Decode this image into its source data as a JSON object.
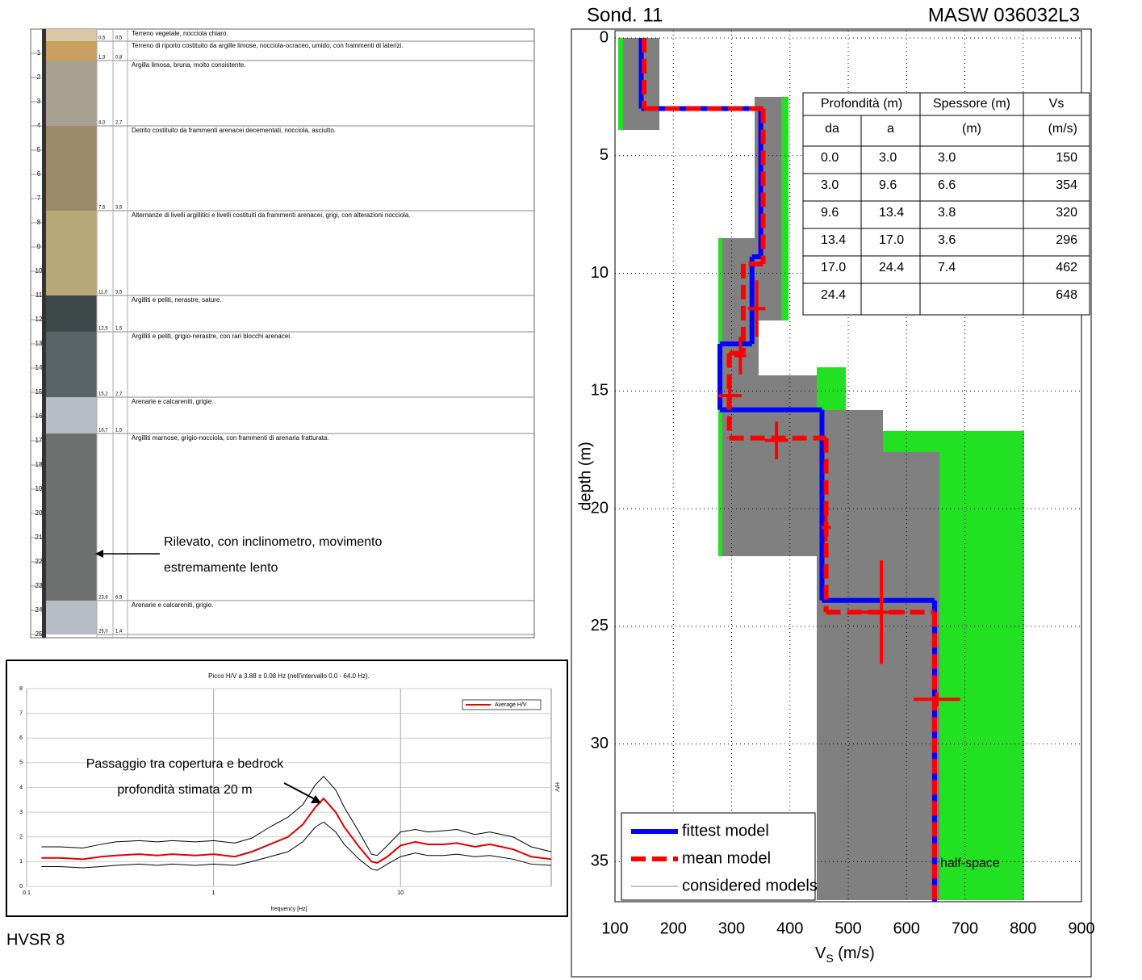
{
  "log": {
    "depth_ticks": [
      1,
      2,
      3,
      4,
      5,
      6,
      7,
      8,
      9,
      10,
      11,
      12,
      13,
      14,
      15,
      16,
      17,
      18,
      19,
      20,
      21,
      22,
      23,
      24,
      25
    ],
    "layers": [
      {
        "depth": {
          "value": 0.5,
          "label": "0,5"
        },
        "thickness": "0,5",
        "color": "#d9c7a6",
        "description": "Terreno vegetale, nocciola chiaro."
      },
      {
        "depth": {
          "value": 1.3,
          "label": "1,3"
        },
        "thickness": "0,8",
        "color": "#c9a060",
        "description": "Terreno di riporto costituito da argille limose, nocciola-ocraceo, umido, con frammenti di laterizi."
      },
      {
        "depth": {
          "value": 4.0,
          "label": "4,0"
        },
        "thickness": "2,7",
        "color": "#a8a090",
        "description": "Argilla limosa, bruna, molto consistente."
      },
      {
        "depth": {
          "value": 7.5,
          "label": "7,5"
        },
        "thickness": "3,5",
        "color": "#9c8a6a",
        "description": "Detrito costituito da frammenti arenacei decementati, nocciola, asciutto."
      },
      {
        "depth": {
          "value": 11.0,
          "label": "11,0"
        },
        "thickness": "3,5",
        "color": "#b8a878",
        "description": "Alternanze di livelli argillitici e livelli costituiti da frammenti arenacei, grigi, con alterazioni nocciola."
      },
      {
        "depth": {
          "value": 12.5,
          "label": "12,5"
        },
        "thickness": "1,5",
        "color": "#3e4848",
        "description": "Argilliti e peliti, nerastre, sature."
      },
      {
        "depth": {
          "value": 15.2,
          "label": "15,2"
        },
        "thickness": "2,7",
        "color": "#5a6466",
        "description": "Argilliti e peliti, grigio-nerastre, con rari blocchi arenacei."
      },
      {
        "depth": {
          "value": 16.7,
          "label": "16,7"
        },
        "thickness": "1,5",
        "color": "#b8bcc4",
        "description": "Arenarie e calcareniti, grigie."
      },
      {
        "depth": {
          "value": 23.6,
          "label": "23,6"
        },
        "thickness": "6,9",
        "color": "#6e7070",
        "description": "Argilliti marnose, grigio-nocciola, con frammenti di arenaria fratturata."
      },
      {
        "depth": {
          "value": 25.0,
          "label": "25,0"
        },
        "thickness": "1,4",
        "color": "#b8bcc4",
        "description": "Arenarie e calcareniti, grigie."
      }
    ],
    "annotation": [
      "Rilevato, con inclinometro, movimento",
      "estremamente lento"
    ]
  },
  "chart_data": [
    {
      "type": "line",
      "title": "Picco H/V a 3.88 ± 0.08 Hz (nell'intervallo 0.0 - 64.0 Hz).",
      "xlabel": "frequency [Hz]",
      "ylabel": "H/V",
      "caption": "HVSR 8",
      "annotation": [
        "Passaggio tra copertura e bedrock",
        "profondità stimata 20 m"
      ],
      "xscale": "log",
      "xlim": [
        0.1,
        64
      ],
      "xticks": [
        0.1,
        1,
        10
      ],
      "ylim": [
        0,
        8
      ],
      "yticks": [
        0,
        1,
        2,
        3,
        4,
        5,
        6,
        7,
        8
      ],
      "grid": true,
      "legend": "upper right",
      "x": [
        0.12,
        0.15,
        0.2,
        0.25,
        0.3,
        0.4,
        0.5,
        0.6,
        0.8,
        1,
        1.3,
        1.6,
        2,
        2.5,
        3,
        3.5,
        3.88,
        4.5,
        5,
        6,
        7,
        7.5,
        8.5,
        10,
        12,
        14,
        17,
        20,
        25,
        30,
        40,
        50,
        64
      ],
      "series": [
        {
          "color": "#000000",
          "values": [
            1.6,
            1.6,
            1.55,
            1.7,
            1.8,
            1.85,
            1.8,
            1.85,
            1.8,
            1.85,
            1.75,
            1.95,
            2.4,
            2.8,
            3.3,
            4.1,
            4.45,
            3.9,
            3.2,
            2.2,
            1.3,
            1.25,
            1.65,
            2.2,
            2.3,
            2.2,
            2.25,
            2.3,
            2.1,
            2.2,
            2.0,
            1.6,
            1.4
          ]
        },
        {
          "color": "#000000",
          "values": [
            0.8,
            0.8,
            0.75,
            0.8,
            0.85,
            0.9,
            0.85,
            0.9,
            0.85,
            0.9,
            0.85,
            1.0,
            1.2,
            1.4,
            1.8,
            2.4,
            2.6,
            2.2,
            1.7,
            1.1,
            0.7,
            0.65,
            0.9,
            1.2,
            1.35,
            1.25,
            1.25,
            1.3,
            1.2,
            1.25,
            1.1,
            0.9,
            0.85
          ]
        },
        {
          "name": "Average H/V",
          "color": "#e00000",
          "values": [
            1.15,
            1.15,
            1.1,
            1.2,
            1.25,
            1.3,
            1.25,
            1.3,
            1.25,
            1.3,
            1.2,
            1.4,
            1.7,
            2.0,
            2.5,
            3.2,
            3.55,
            3.0,
            2.4,
            1.6,
            1.0,
            0.95,
            1.2,
            1.65,
            1.8,
            1.7,
            1.7,
            1.75,
            1.6,
            1.7,
            1.5,
            1.2,
            1.1
          ]
        }
      ]
    },
    {
      "type": "step",
      "title": "Sond. 11",
      "subtitle": "MASW 036032L3",
      "xlabel": {
        "main": "V",
        "sub": "S",
        "unit": "(m/s)"
      },
      "ylabel": "depth (m)",
      "xlim": [
        100,
        900
      ],
      "xticks": [
        100,
        200,
        300,
        400,
        500,
        600,
        700,
        800,
        900
      ],
      "ylim": [
        0,
        36.7
      ],
      "yticks": [
        0,
        5,
        10,
        15,
        20,
        25,
        30,
        35
      ],
      "y_inverted": true,
      "grid": true,
      "legend": "lower left",
      "series": [
        {
          "name": "fittest model",
          "color": "#0000ff",
          "style": "solid",
          "top": [
            0,
            3,
            9.3,
            13,
            15.8,
            23.9
          ],
          "vs": [
            145,
            350,
            335,
            280,
            455,
            648
          ]
        },
        {
          "name": "mean model",
          "color": "#ff0000",
          "style": "dashed",
          "top": [
            0,
            3,
            9.6,
            13.4,
            17,
            24.4
          ],
          "vs": [
            150,
            354,
            320,
            296,
            462,
            648
          ]
        },
        {
          "name": "considered models",
          "color": "#808080",
          "style": "thin"
        }
      ],
      "errors": [
        {
          "vs": 343,
          "depth": 11.5,
          "vs_err": 15,
          "depth_err": 1.2
        },
        {
          "vs": 315,
          "depth": 13.5,
          "vs_err": 10,
          "depth_err": 0.8
        },
        {
          "vs": 297,
          "depth": 15.2,
          "vs_err": 20,
          "depth_err": 0.3
        },
        {
          "vs": 377,
          "depth": 17.1,
          "vs_err": 20,
          "depth_err": 0.8
        },
        {
          "vs": 462,
          "depth": 20.8,
          "vs_err": 8,
          "depth_err": 0.6
        },
        {
          "vs": 557,
          "depth": 24.4,
          "vs_err": 40,
          "depth_err": 2.2
        },
        {
          "vs": 652,
          "depth": 28.1,
          "vs_err": 40,
          "depth_err": 0.3
        }
      ],
      "annotation": "half-space",
      "table": {
        "header": [
          "Profondità (m)",
          "Spessore (m)",
          "Vs"
        ],
        "subheader": [
          "da",
          "a",
          "(m)",
          "(m/s)"
        ],
        "rows": [
          [
            "0.0",
            "3.0",
            "3.0",
            "150"
          ],
          [
            "3.0",
            "9.6",
            "6.6",
            "354"
          ],
          [
            "9.6",
            "13.4",
            "3.8",
            "320"
          ],
          [
            "13.4",
            "17.0",
            "3.6",
            "296"
          ],
          [
            "17.0",
            "24.4",
            "7.4",
            "462"
          ],
          [
            "24.4",
            null,
            null,
            "648"
          ]
        ]
      }
    }
  ]
}
